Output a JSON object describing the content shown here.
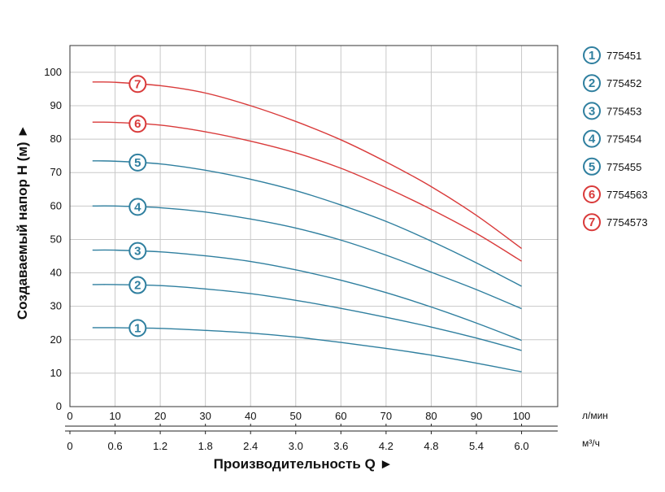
{
  "chart_data": {
    "type": "line",
    "xlabel": "Производительность Q ►",
    "ylabel": "Создаваемый напор Н (м) ►",
    "x_unit": "л/мин",
    "x2_unit": "м³/ч",
    "x_ticks": [
      "0",
      "10",
      "20",
      "30",
      "40",
      "50",
      "60",
      "70",
      "80",
      "90",
      "100"
    ],
    "x2_ticks": [
      "0",
      "0.6",
      "1.2",
      "1.8",
      "2.4",
      "3.0",
      "3.6",
      "4.2",
      "4.8",
      "5.4",
      "6.0"
    ],
    "y_ticks": [
      "0",
      "10",
      "20",
      "30",
      "40",
      "50",
      "60",
      "70",
      "80",
      "90",
      "100"
    ],
    "xlim": [
      0,
      108
    ],
    "ylim": [
      0,
      108
    ],
    "grid": true,
    "legend_position": "right",
    "x": [
      5,
      10,
      20,
      30,
      40,
      50,
      60,
      70,
      80,
      90,
      100
    ],
    "series": [
      {
        "marker": "1",
        "name": "775451",
        "color": "#2f7f9f",
        "values": [
          23.6,
          23.6,
          23.4,
          22.8,
          22.0,
          20.8,
          19.2,
          17.4,
          15.4,
          13.0,
          10.4
        ]
      },
      {
        "marker": "2",
        "name": "775452",
        "color": "#2f7f9f",
        "values": [
          36.5,
          36.5,
          36.2,
          35.2,
          33.8,
          31.8,
          29.4,
          26.7,
          23.8,
          20.5,
          16.8
        ]
      },
      {
        "marker": "3",
        "name": "775453",
        "color": "#2f7f9f",
        "values": [
          46.8,
          46.8,
          46.3,
          45.1,
          43.4,
          40.9,
          37.8,
          34.1,
          29.8,
          25.0,
          19.8
        ]
      },
      {
        "marker": "4",
        "name": "775454",
        "color": "#2f7f9f",
        "values": [
          60.0,
          60.0,
          59.5,
          58.2,
          56.1,
          53.4,
          49.8,
          45.3,
          40.2,
          35.0,
          29.3
        ]
      },
      {
        "marker": "5",
        "name": "775455",
        "color": "#2f7f9f",
        "values": [
          73.5,
          73.4,
          72.6,
          70.7,
          68.0,
          64.6,
          60.3,
          55.4,
          49.5,
          43.0,
          36.0
        ]
      },
      {
        "marker": "6",
        "name": "7754563",
        "color": "#d93a3a",
        "values": [
          85.1,
          85.0,
          84.2,
          82.2,
          79.4,
          75.9,
          71.3,
          65.5,
          59.0,
          51.8,
          43.5
        ]
      },
      {
        "marker": "7",
        "name": "7754573",
        "color": "#d93a3a",
        "values": [
          97.1,
          97.0,
          96.0,
          93.8,
          90.0,
          85.3,
          79.8,
          73.2,
          65.8,
          57.2,
          47.3
        ]
      }
    ],
    "marker_x": 15
  }
}
